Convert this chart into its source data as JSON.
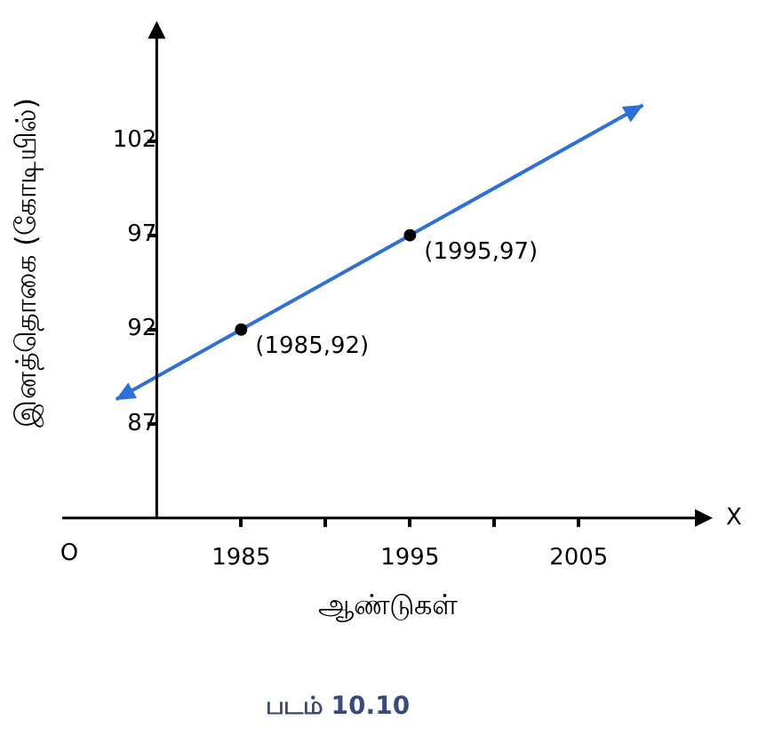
{
  "chart_data": {
    "type": "line",
    "xlabel": "ஆண்டுகள்",
    "ylabel": "இனத்தொகை (கோடியில்)",
    "x": [
      1977.6,
      1985,
      1995,
      2008.8
    ],
    "series": [
      {
        "color": "#2f6fd8",
        "values": [
          88.3,
          92,
          97,
          103.9
        ]
      }
    ],
    "marker": "circle",
    "xlim": [
      1974.4,
      2012.3
    ],
    "xticks": [
      1985,
      {
        "value": 1990,
        "label": null
      },
      1995,
      {
        "value": 2000,
        "label": null
      },
      2005
    ],
    "ylim": [
      82,
      107.8
    ],
    "yticks": [
      87,
      92,
      97,
      102
    ],
    "grid": false,
    "legend": false,
    "annotations": [
      {
        "text": "(1985,92)",
        "x": 1985,
        "y": 92
      },
      {
        "text": "(1995,97)",
        "x": 1995,
        "y": 97
      },
      "O",
      "X",
      "படம் 10.10"
    ]
  }
}
